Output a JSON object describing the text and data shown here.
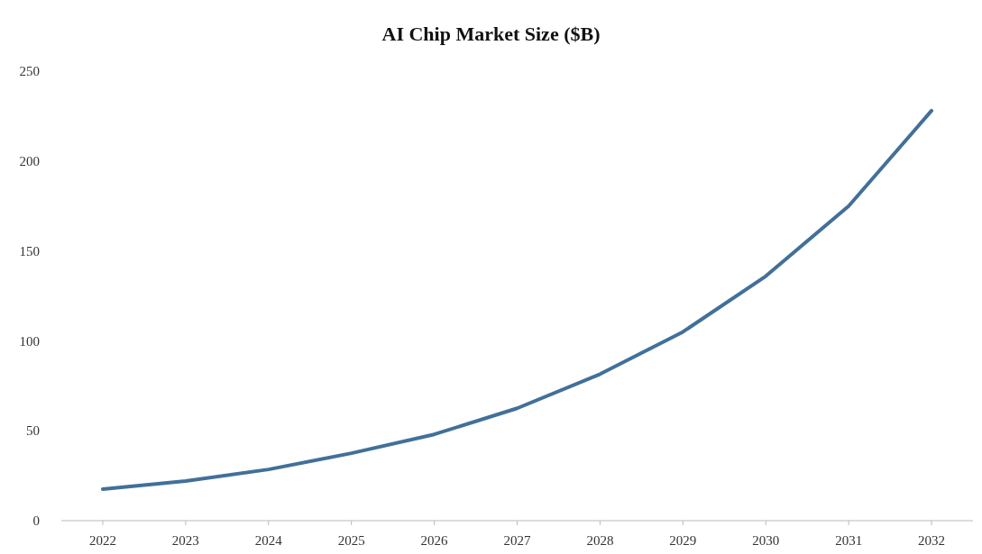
{
  "chart_data": {
    "type": "line",
    "title": "AI Chip Market Size ($B)",
    "categories": [
      "2022",
      "2023",
      "2024",
      "2025",
      "2026",
      "2027",
      "2028",
      "2029",
      "2030",
      "2031",
      "2032"
    ],
    "series": [
      {
        "color": "#41709a",
        "values": [
          17.5,
          22,
          28.5,
          37.5,
          48,
          62.5,
          81.5,
          105,
          136,
          175,
          228
        ]
      }
    ],
    "ylim": [
      0,
      250
    ],
    "yticks": [
      0,
      50,
      100,
      150,
      200,
      250
    ],
    "grid": false,
    "marker": "none",
    "line_style": "solid"
  }
}
